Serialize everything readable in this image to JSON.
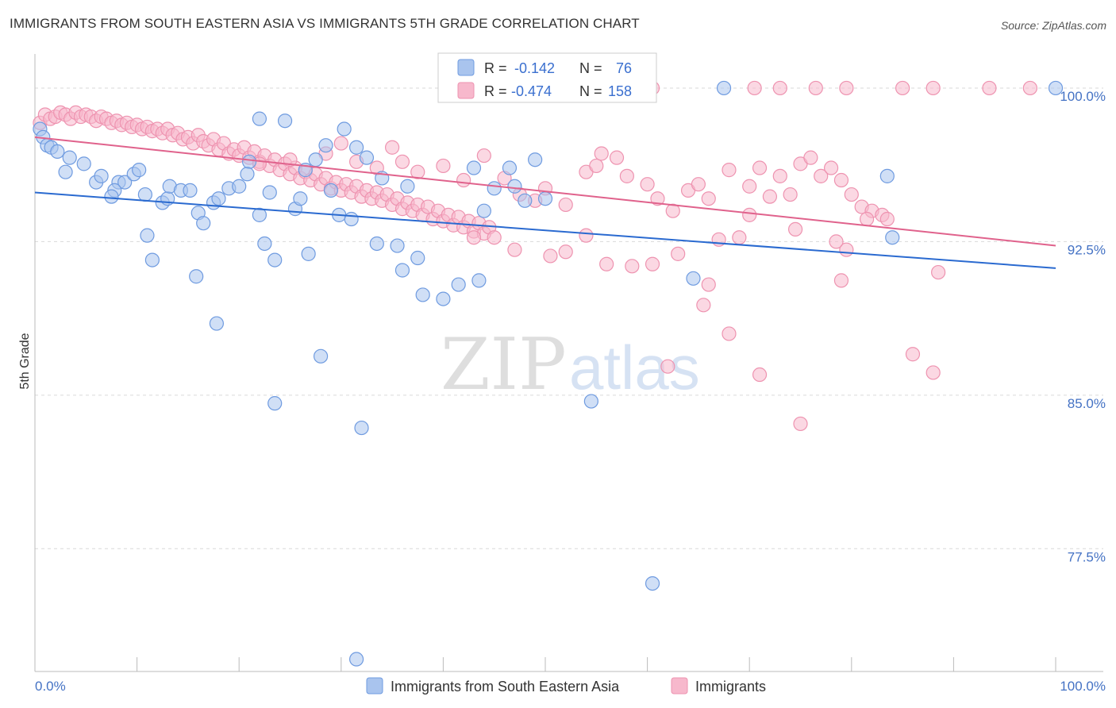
{
  "title": "IMMIGRANTS FROM SOUTH EASTERN ASIA VS IMMIGRANTS 5TH GRADE CORRELATION CHART",
  "source": "Source: ZipAtlas.com",
  "watermark": {
    "zip": "ZIP",
    "atlas": "atlas"
  },
  "colors": {
    "blue_fill": "#a9c4ee",
    "blue_stroke": "#6f9be0",
    "blue_line": "#2a6ad0",
    "pink_fill": "#f7b8cc",
    "pink_stroke": "#ee93b0",
    "pink_line": "#e0628c",
    "grid": "#d9d9d9",
    "tick_text": "#4472c4"
  },
  "legend_box": {
    "rows": [
      {
        "r_label": "R =",
        "r_value": "-0.142",
        "n_label": "N =",
        "n_value": "76"
      },
      {
        "r_label": "R =",
        "r_value": "-0.474",
        "n_label": "N =",
        "n_value": "158"
      }
    ]
  },
  "chart_data": {
    "type": "scatter",
    "title": "IMMIGRANTS FROM SOUTH EASTERN ASIA VS IMMIGRANTS 5TH GRADE CORRELATION CHART",
    "xlabel": "",
    "ylabel": "5th Grade",
    "xlim": [
      0,
      100
    ],
    "ylim": [
      71.5,
      101.2
    ],
    "x_tick_labels": [
      "0.0%",
      "100.0%"
    ],
    "y_ticks": [
      100.0,
      92.5,
      85.0,
      77.5
    ],
    "y_tick_labels": [
      "100.0%",
      "92.5%",
      "85.0%",
      "77.5%"
    ],
    "grid": true,
    "legend_placement": "bottom-center",
    "series": [
      {
        "name": "Immigrants from South Eastern Asia",
        "color": "#a9c4ee",
        "trend": {
          "x": [
            0,
            100
          ],
          "y": [
            94.9,
            91.2
          ]
        },
        "points": [
          [
            0.5,
            98.0
          ],
          [
            0.8,
            97.6
          ],
          [
            1.2,
            97.2
          ],
          [
            1.6,
            97.1
          ],
          [
            2.2,
            96.9
          ],
          [
            3.4,
            96.6
          ],
          [
            4.8,
            96.3
          ],
          [
            3.0,
            95.9
          ],
          [
            6.0,
            95.4
          ],
          [
            6.5,
            95.7
          ],
          [
            8.2,
            95.4
          ],
          [
            8.8,
            95.4
          ],
          [
            7.8,
            95.0
          ],
          [
            9.7,
            95.8
          ],
          [
            10.2,
            96.0
          ],
          [
            7.5,
            94.7
          ],
          [
            10.8,
            94.8
          ],
          [
            12.5,
            94.4
          ],
          [
            13.0,
            94.6
          ],
          [
            13.2,
            95.2
          ],
          [
            14.3,
            95.0
          ],
          [
            15.2,
            95.0
          ],
          [
            16.0,
            93.9
          ],
          [
            16.5,
            93.4
          ],
          [
            17.5,
            94.4
          ],
          [
            18.0,
            94.6
          ],
          [
            19.0,
            95.1
          ],
          [
            20.0,
            95.2
          ],
          [
            21.0,
            96.4
          ],
          [
            20.8,
            95.8
          ],
          [
            22.0,
            93.8
          ],
          [
            22.0,
            98.5
          ],
          [
            24.5,
            98.4
          ],
          [
            25.5,
            94.1
          ],
          [
            26.5,
            96.0
          ],
          [
            27.5,
            96.5
          ],
          [
            26.8,
            91.9
          ],
          [
            28.5,
            97.2
          ],
          [
            29.0,
            95.0
          ],
          [
            29.8,
            93.8
          ],
          [
            30.3,
            98.0
          ],
          [
            31.5,
            97.1
          ],
          [
            32.5,
            96.6
          ],
          [
            34.0,
            95.6
          ],
          [
            36.5,
            95.2
          ],
          [
            33.5,
            92.4
          ],
          [
            35.5,
            92.3
          ],
          [
            36.0,
            91.1
          ],
          [
            37.5,
            91.7
          ],
          [
            38.0,
            89.9
          ],
          [
            40.0,
            89.7
          ],
          [
            41.5,
            90.4
          ],
          [
            43.0,
            96.1
          ],
          [
            43.5,
            90.6
          ],
          [
            44.0,
            94.0
          ],
          [
            45.0,
            95.1
          ],
          [
            46.5,
            96.1
          ],
          [
            47.0,
            95.2
          ],
          [
            48.0,
            94.5
          ],
          [
            49.0,
            96.5
          ],
          [
            50.0,
            94.6
          ],
          [
            26.0,
            94.6
          ],
          [
            23.0,
            94.9
          ],
          [
            11.0,
            92.8
          ],
          [
            11.5,
            91.6
          ],
          [
            15.8,
            90.8
          ],
          [
            17.8,
            88.5
          ],
          [
            22.5,
            92.4
          ],
          [
            23.5,
            91.6
          ],
          [
            23.5,
            84.6
          ],
          [
            28.0,
            86.9
          ],
          [
            31.0,
            93.6
          ],
          [
            32.0,
            83.4
          ],
          [
            31.5,
            72.1
          ],
          [
            57.5,
            100.0
          ],
          [
            67.5,
            100.0
          ],
          [
            83.5,
            95.7
          ],
          [
            100.0,
            100.0
          ],
          [
            84.0,
            92.7
          ],
          [
            64.5,
            90.7
          ],
          [
            54.5,
            84.7
          ],
          [
            60.5,
            75.8
          ]
        ]
      },
      {
        "name": "Immigrants",
        "color": "#f7b8cc",
        "trend": {
          "x": [
            0,
            100
          ],
          "y": [
            97.6,
            92.3
          ]
        },
        "points": [
          [
            0.5,
            98.3
          ],
          [
            1.0,
            98.7
          ],
          [
            1.5,
            98.5
          ],
          [
            2.0,
            98.6
          ],
          [
            2.5,
            98.8
          ],
          [
            3.0,
            98.7
          ],
          [
            3.5,
            98.5
          ],
          [
            4.0,
            98.8
          ],
          [
            4.5,
            98.6
          ],
          [
            5.0,
            98.7
          ],
          [
            5.5,
            98.6
          ],
          [
            6.0,
            98.4
          ],
          [
            6.5,
            98.6
          ],
          [
            7.0,
            98.5
          ],
          [
            7.5,
            98.3
          ],
          [
            8.0,
            98.4
          ],
          [
            8.5,
            98.2
          ],
          [
            9.0,
            98.3
          ],
          [
            9.5,
            98.1
          ],
          [
            10.0,
            98.2
          ],
          [
            10.5,
            98.0
          ],
          [
            11.0,
            98.1
          ],
          [
            11.5,
            97.9
          ],
          [
            12.0,
            98.0
          ],
          [
            12.5,
            97.8
          ],
          [
            13.0,
            98.0
          ],
          [
            13.5,
            97.7
          ],
          [
            14.0,
            97.8
          ],
          [
            14.5,
            97.5
          ],
          [
            15.0,
            97.6
          ],
          [
            15.5,
            97.3
          ],
          [
            16.0,
            97.7
          ],
          [
            16.5,
            97.4
          ],
          [
            17.0,
            97.2
          ],
          [
            17.5,
            97.5
          ],
          [
            18.0,
            97.0
          ],
          [
            18.5,
            97.3
          ],
          [
            19.0,
            96.8
          ],
          [
            19.5,
            97.0
          ],
          [
            20.0,
            96.7
          ],
          [
            20.5,
            97.1
          ],
          [
            21.0,
            96.6
          ],
          [
            21.5,
            96.9
          ],
          [
            22.0,
            96.4
          ],
          [
            22.5,
            96.7
          ],
          [
            23.0,
            96.2
          ],
          [
            23.5,
            96.5
          ],
          [
            24.0,
            96.0
          ],
          [
            24.5,
            96.3
          ],
          [
            25.0,
            95.8
          ],
          [
            25.5,
            96.1
          ],
          [
            26.0,
            95.6
          ],
          [
            26.5,
            95.9
          ],
          [
            27.0,
            95.5
          ],
          [
            27.5,
            95.8
          ],
          [
            28.0,
            95.3
          ],
          [
            28.5,
            95.6
          ],
          [
            29.0,
            95.1
          ],
          [
            29.5,
            95.4
          ],
          [
            30.0,
            95.0
          ],
          [
            30.5,
            95.3
          ],
          [
            31.0,
            94.9
          ],
          [
            31.5,
            95.2
          ],
          [
            32.0,
            94.7
          ],
          [
            32.5,
            95.0
          ],
          [
            33.0,
            94.6
          ],
          [
            33.5,
            94.9
          ],
          [
            34.0,
            94.5
          ],
          [
            34.5,
            94.8
          ],
          [
            35.0,
            94.3
          ],
          [
            35.5,
            94.6
          ],
          [
            36.0,
            94.1
          ],
          [
            36.5,
            94.4
          ],
          [
            37.0,
            94.0
          ],
          [
            37.5,
            94.3
          ],
          [
            38.0,
            93.8
          ],
          [
            38.5,
            94.2
          ],
          [
            39.0,
            93.6
          ],
          [
            39.5,
            94.0
          ],
          [
            40.0,
            93.5
          ],
          [
            40.5,
            93.8
          ],
          [
            41.0,
            93.3
          ],
          [
            41.5,
            93.7
          ],
          [
            42.0,
            93.2
          ],
          [
            42.5,
            93.5
          ],
          [
            43.0,
            93.0
          ],
          [
            43.5,
            93.4
          ],
          [
            44.0,
            92.9
          ],
          [
            44.5,
            93.2
          ],
          [
            45.0,
            92.7
          ],
          [
            22.0,
            96.3
          ],
          [
            25.0,
            96.5
          ],
          [
            28.5,
            96.8
          ],
          [
            30.0,
            97.3
          ],
          [
            31.5,
            96.4
          ],
          [
            33.5,
            96.1
          ],
          [
            35.0,
            97.1
          ],
          [
            36.0,
            96.4
          ],
          [
            37.5,
            95.9
          ],
          [
            40.0,
            96.2
          ],
          [
            42.0,
            95.5
          ],
          [
            44.0,
            96.7
          ],
          [
            46.0,
            95.6
          ],
          [
            47.5,
            94.8
          ],
          [
            49.0,
            94.5
          ],
          [
            50.0,
            95.1
          ],
          [
            52.0,
            94.3
          ],
          [
            54.0,
            95.9
          ],
          [
            55.0,
            96.2
          ],
          [
            55.5,
            96.8
          ],
          [
            57.0,
            96.6
          ],
          [
            58.0,
            95.7
          ],
          [
            60.0,
            95.3
          ],
          [
            61.0,
            94.6
          ],
          [
            62.5,
            94.0
          ],
          [
            64.0,
            95.0
          ],
          [
            65.0,
            95.3
          ],
          [
            66.0,
            94.6
          ],
          [
            68.0,
            96.0
          ],
          [
            70.0,
            95.2
          ],
          [
            71.0,
            96.1
          ],
          [
            72.0,
            94.7
          ],
          [
            73.0,
            95.7
          ],
          [
            74.0,
            94.8
          ],
          [
            75.0,
            96.3
          ],
          [
            76.0,
            96.6
          ],
          [
            77.0,
            95.7
          ],
          [
            78.0,
            96.1
          ],
          [
            79.0,
            95.5
          ],
          [
            80.0,
            94.8
          ],
          [
            81.0,
            94.2
          ],
          [
            82.0,
            94.0
          ],
          [
            83.0,
            93.8
          ],
          [
            74.5,
            93.1
          ],
          [
            81.5,
            93.6
          ],
          [
            83.5,
            93.6
          ],
          [
            88.5,
            91.0
          ],
          [
            79.0,
            90.6
          ],
          [
            79.5,
            92.1
          ],
          [
            78.5,
            92.5
          ],
          [
            65.5,
            89.4
          ],
          [
            68.0,
            88.0
          ],
          [
            71.0,
            86.0
          ],
          [
            86.0,
            87.0
          ],
          [
            88.0,
            86.1
          ],
          [
            75.0,
            83.6
          ],
          [
            62.0,
            86.4
          ],
          [
            66.0,
            90.4
          ],
          [
            67.0,
            92.6
          ],
          [
            69.0,
            92.7
          ],
          [
            70.0,
            93.8
          ],
          [
            63.0,
            91.9
          ],
          [
            56.0,
            91.4
          ],
          [
            58.5,
            91.3
          ],
          [
            60.5,
            91.4
          ],
          [
            43.0,
            92.7
          ],
          [
            47.0,
            92.1
          ],
          [
            52.0,
            92.0
          ],
          [
            54.0,
            92.8
          ],
          [
            50.5,
            91.8
          ],
          [
            70.5,
            100.0
          ],
          [
            73.0,
            100.0
          ],
          [
            76.5,
            100.0
          ],
          [
            79.5,
            100.0
          ],
          [
            85.0,
            100.0
          ],
          [
            88.0,
            100.0
          ],
          [
            93.5,
            100.0
          ],
          [
            97.5,
            100.0
          ],
          [
            60.5,
            100.0
          ]
        ]
      }
    ]
  },
  "bottom_legend": {
    "items": [
      {
        "label": "Immigrants from South Eastern Asia"
      },
      {
        "label": "Immigrants"
      }
    ]
  }
}
